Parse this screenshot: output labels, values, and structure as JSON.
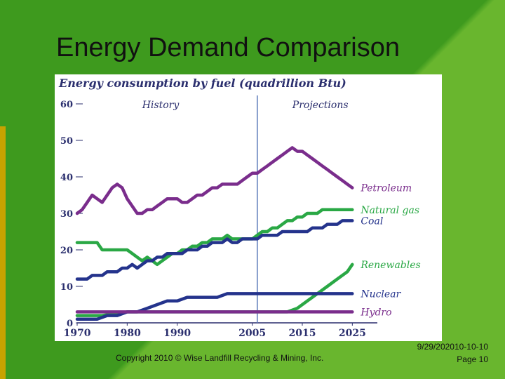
{
  "slide": {
    "title": "Energy Demand Comparison",
    "copyright": "Copyright 2010 © Wise Landfill Recycling & Mining, Inc.",
    "date": "9/29/202010-10-10",
    "page": "Page 10"
  },
  "chart_data": {
    "type": "line",
    "title": "Energy consumption by fuel (quadrillion Btu)",
    "ylim": [
      0,
      60
    ],
    "xlim": [
      1970,
      2030
    ],
    "yticks": [
      "0",
      "10",
      "20",
      "30",
      "40",
      "50",
      "60"
    ],
    "xticks": [
      "1970",
      "1980",
      "1990",
      "2005",
      "2015",
      "2025"
    ],
    "xtick_positions": [
      1970,
      1980,
      1990,
      2005,
      2015,
      2025
    ],
    "annotations": {
      "history": "History",
      "projections": "Projections",
      "split_year": 2006
    },
    "grid": false,
    "series": [
      {
        "name": "Petroleum",
        "color": "#7a2d8c",
        "points": [
          [
            1970,
            30
          ],
          [
            1971,
            31
          ],
          [
            1972,
            33
          ],
          [
            1973,
            35
          ],
          [
            1974,
            34
          ],
          [
            1975,
            33
          ],
          [
            1976,
            35
          ],
          [
            1977,
            37
          ],
          [
            1978,
            38
          ],
          [
            1979,
            37
          ],
          [
            1980,
            34
          ],
          [
            1981,
            32
          ],
          [
            1982,
            30
          ],
          [
            1983,
            30
          ],
          [
            1984,
            31
          ],
          [
            1985,
            31
          ],
          [
            1986,
            32
          ],
          [
            1987,
            33
          ],
          [
            1988,
            34
          ],
          [
            1989,
            34
          ],
          [
            1990,
            34
          ],
          [
            1991,
            33
          ],
          [
            1992,
            33
          ],
          [
            1993,
            34
          ],
          [
            1994,
            35
          ],
          [
            1995,
            35
          ],
          [
            1996,
            36
          ],
          [
            1997,
            37
          ],
          [
            1998,
            37
          ],
          [
            1999,
            38
          ],
          [
            2000,
            38
          ],
          [
            2001,
            38
          ],
          [
            2002,
            38
          ],
          [
            2003,
            39
          ],
          [
            2004,
            40
          ],
          [
            2005,
            41
          ],
          [
            2006,
            41
          ],
          [
            2007,
            42
          ],
          [
            2008,
            43
          ],
          [
            2009,
            44
          ],
          [
            2010,
            45
          ],
          [
            2011,
            46
          ],
          [
            2012,
            47
          ],
          [
            2013,
            48
          ],
          [
            2014,
            47
          ],
          [
            2015,
            47
          ],
          [
            2016,
            46
          ],
          [
            2017,
            45
          ],
          [
            2018,
            44
          ],
          [
            2019,
            43
          ],
          [
            2020,
            42
          ],
          [
            2021,
            41
          ],
          [
            2022,
            40
          ],
          [
            2023,
            39
          ],
          [
            2024,
            38
          ],
          [
            2025,
            37
          ]
        ]
      },
      {
        "name": "Natural gas",
        "color": "#2aa845",
        "points": [
          [
            1970,
            22
          ],
          [
            1971,
            22
          ],
          [
            1972,
            22
          ],
          [
            1973,
            22
          ],
          [
            1974,
            22
          ],
          [
            1975,
            20
          ],
          [
            1976,
            20
          ],
          [
            1977,
            20
          ],
          [
            1978,
            20
          ],
          [
            1979,
            20
          ],
          [
            1980,
            20
          ],
          [
            1981,
            19
          ],
          [
            1982,
            18
          ],
          [
            1983,
            17
          ],
          [
            1984,
            18
          ],
          [
            1985,
            17
          ],
          [
            1986,
            16
          ],
          [
            1987,
            17
          ],
          [
            1988,
            18
          ],
          [
            1989,
            19
          ],
          [
            1990,
            19
          ],
          [
            1991,
            20
          ],
          [
            1992,
            20
          ],
          [
            1993,
            21
          ],
          [
            1994,
            21
          ],
          [
            1995,
            22
          ],
          [
            1996,
            22
          ],
          [
            1997,
            23
          ],
          [
            1998,
            23
          ],
          [
            1999,
            23
          ],
          [
            2000,
            24
          ],
          [
            2001,
            23
          ],
          [
            2002,
            23
          ],
          [
            2003,
            23
          ],
          [
            2004,
            23
          ],
          [
            2005,
            23
          ],
          [
            2006,
            24
          ],
          [
            2007,
            25
          ],
          [
            2008,
            25
          ],
          [
            2009,
            26
          ],
          [
            2010,
            26
          ],
          [
            2011,
            27
          ],
          [
            2012,
            28
          ],
          [
            2013,
            28
          ],
          [
            2014,
            29
          ],
          [
            2015,
            29
          ],
          [
            2016,
            30
          ],
          [
            2017,
            30
          ],
          [
            2018,
            30
          ],
          [
            2019,
            31
          ],
          [
            2020,
            31
          ],
          [
            2021,
            31
          ],
          [
            2022,
            31
          ],
          [
            2023,
            31
          ],
          [
            2024,
            31
          ],
          [
            2025,
            31
          ]
        ]
      },
      {
        "name": "Coal",
        "color": "#24338c",
        "points": [
          [
            1970,
            12
          ],
          [
            1971,
            12
          ],
          [
            1972,
            12
          ],
          [
            1973,
            13
          ],
          [
            1974,
            13
          ],
          [
            1975,
            13
          ],
          [
            1976,
            14
          ],
          [
            1977,
            14
          ],
          [
            1978,
            14
          ],
          [
            1979,
            15
          ],
          [
            1980,
            15
          ],
          [
            1981,
            16
          ],
          [
            1982,
            15
          ],
          [
            1983,
            16
          ],
          [
            1984,
            17
          ],
          [
            1985,
            17
          ],
          [
            1986,
            18
          ],
          [
            1987,
            18
          ],
          [
            1988,
            19
          ],
          [
            1989,
            19
          ],
          [
            1990,
            19
          ],
          [
            1991,
            19
          ],
          [
            1992,
            20
          ],
          [
            1993,
            20
          ],
          [
            1994,
            20
          ],
          [
            1995,
            21
          ],
          [
            1996,
            21
          ],
          [
            1997,
            22
          ],
          [
            1998,
            22
          ],
          [
            1999,
            22
          ],
          [
            2000,
            23
          ],
          [
            2001,
            22
          ],
          [
            2002,
            22
          ],
          [
            2003,
            23
          ],
          [
            2004,
            23
          ],
          [
            2005,
            23
          ],
          [
            2006,
            23
          ],
          [
            2007,
            24
          ],
          [
            2008,
            24
          ],
          [
            2009,
            24
          ],
          [
            2010,
            24
          ],
          [
            2011,
            25
          ],
          [
            2012,
            25
          ],
          [
            2013,
            25
          ],
          [
            2014,
            25
          ],
          [
            2015,
            25
          ],
          [
            2016,
            25
          ],
          [
            2017,
            26
          ],
          [
            2018,
            26
          ],
          [
            2019,
            26
          ],
          [
            2020,
            27
          ],
          [
            2021,
            27
          ],
          [
            2022,
            27
          ],
          [
            2023,
            28
          ],
          [
            2024,
            28
          ],
          [
            2025,
            28
          ]
        ]
      },
      {
        "name": "Renewables",
        "color": "#2aa845",
        "points": [
          [
            1970,
            2
          ],
          [
            1975,
            2
          ],
          [
            1980,
            3
          ],
          [
            1985,
            3
          ],
          [
            1990,
            3
          ],
          [
            1995,
            3
          ],
          [
            2000,
            3
          ],
          [
            2005,
            3
          ],
          [
            2010,
            3
          ],
          [
            2012,
            3
          ],
          [
            2014,
            4
          ],
          [
            2016,
            6
          ],
          [
            2018,
            8
          ],
          [
            2020,
            10
          ],
          [
            2022,
            12
          ],
          [
            2024,
            14
          ],
          [
            2025,
            16
          ]
        ]
      },
      {
        "name": "Nuclear",
        "color": "#24338c",
        "points": [
          [
            1970,
            1
          ],
          [
            1972,
            1
          ],
          [
            1974,
            1
          ],
          [
            1976,
            2
          ],
          [
            1978,
            2
          ],
          [
            1980,
            3
          ],
          [
            1982,
            3
          ],
          [
            1984,
            4
          ],
          [
            1986,
            5
          ],
          [
            1988,
            6
          ],
          [
            1990,
            6
          ],
          [
            1992,
            7
          ],
          [
            1994,
            7
          ],
          [
            1996,
            7
          ],
          [
            1998,
            7
          ],
          [
            2000,
            8
          ],
          [
            2002,
            8
          ],
          [
            2004,
            8
          ],
          [
            2006,
            8
          ],
          [
            2010,
            8
          ],
          [
            2015,
            8
          ],
          [
            2020,
            8
          ],
          [
            2025,
            8
          ]
        ]
      },
      {
        "name": "Hydro",
        "color": "#7a2d8c",
        "points": [
          [
            1970,
            3
          ],
          [
            1972,
            3
          ],
          [
            1974,
            3
          ],
          [
            1976,
            3
          ],
          [
            1978,
            3
          ],
          [
            1980,
            3
          ],
          [
            1982,
            3
          ],
          [
            1984,
            3
          ],
          [
            1986,
            3
          ],
          [
            1988,
            3
          ],
          [
            1990,
            3
          ],
          [
            1992,
            3
          ],
          [
            1994,
            3
          ],
          [
            1996,
            3
          ],
          [
            1998,
            3
          ],
          [
            2000,
            3
          ],
          [
            2002,
            3
          ],
          [
            2004,
            3
          ],
          [
            2006,
            3
          ],
          [
            2010,
            3
          ],
          [
            2015,
            3
          ],
          [
            2020,
            3
          ],
          [
            2025,
            3
          ]
        ]
      }
    ]
  }
}
